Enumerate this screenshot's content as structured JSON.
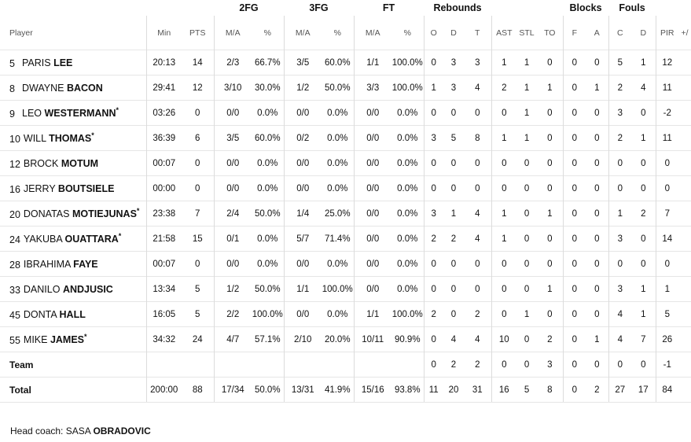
{
  "groups": {
    "two_fg": "2FG",
    "three_fg": "3FG",
    "ft": "FT",
    "rebounds": "Rebounds",
    "blocks": "Blocks",
    "fouls": "Fouls"
  },
  "headers": [
    "Player",
    "Min",
    "PTS",
    "M/A",
    "%",
    "M/A",
    "%",
    "M/A",
    "%",
    "O",
    "D",
    "T",
    "AST",
    "STL",
    "TO",
    "F",
    "A",
    "C",
    "D",
    "PIR",
    "+/"
  ],
  "players": [
    {
      "num": "5",
      "first": "PARIS",
      "last": "LEE",
      "star": "",
      "stats": [
        "20:13",
        "14",
        "2/3",
        "66.7%",
        "3/5",
        "60.0%",
        "1/1",
        "100.0%",
        "0",
        "3",
        "3",
        "1",
        "1",
        "0",
        "0",
        "0",
        "5",
        "1",
        "12",
        ""
      ]
    },
    {
      "num": "8",
      "first": "DWAYNE",
      "last": "BACON",
      "star": "",
      "stats": [
        "29:41",
        "12",
        "3/10",
        "30.0%",
        "1/2",
        "50.0%",
        "3/3",
        "100.0%",
        "1",
        "3",
        "4",
        "2",
        "1",
        "1",
        "0",
        "1",
        "2",
        "4",
        "11",
        ""
      ]
    },
    {
      "num": "9",
      "first": "LEO",
      "last": "WESTERMANN",
      "star": "*",
      "stats": [
        "03:26",
        "0",
        "0/0",
        "0.0%",
        "0/0",
        "0.0%",
        "0/0",
        "0.0%",
        "0",
        "0",
        "0",
        "0",
        "1",
        "0",
        "0",
        "0",
        "3",
        "0",
        "-2",
        ""
      ]
    },
    {
      "num": "10",
      "first": "WILL",
      "last": "THOMAS",
      "star": "*",
      "stats": [
        "36:39",
        "6",
        "3/5",
        "60.0%",
        "0/2",
        "0.0%",
        "0/0",
        "0.0%",
        "3",
        "5",
        "8",
        "1",
        "1",
        "0",
        "0",
        "0",
        "2",
        "1",
        "11",
        ""
      ]
    },
    {
      "num": "12",
      "first": "BROCK",
      "last": "MOTUM",
      "star": "",
      "stats": [
        "00:07",
        "0",
        "0/0",
        "0.0%",
        "0/0",
        "0.0%",
        "0/0",
        "0.0%",
        "0",
        "0",
        "0",
        "0",
        "0",
        "0",
        "0",
        "0",
        "0",
        "0",
        "0",
        ""
      ]
    },
    {
      "num": "16",
      "first": "JERRY",
      "last": "BOUTSIELE",
      "star": "",
      "stats": [
        "00:00",
        "0",
        "0/0",
        "0.0%",
        "0/0",
        "0.0%",
        "0/0",
        "0.0%",
        "0",
        "0",
        "0",
        "0",
        "0",
        "0",
        "0",
        "0",
        "0",
        "0",
        "0",
        ""
      ]
    },
    {
      "num": "20",
      "first": "DONATAS",
      "last": "MOTIEJUNAS",
      "star": "*",
      "stats": [
        "23:38",
        "7",
        "2/4",
        "50.0%",
        "1/4",
        "25.0%",
        "0/0",
        "0.0%",
        "3",
        "1",
        "4",
        "1",
        "0",
        "1",
        "0",
        "0",
        "1",
        "2",
        "7",
        ""
      ]
    },
    {
      "num": "24",
      "first": "YAKUBA",
      "last": "OUATTARA",
      "star": "*",
      "stats": [
        "21:58",
        "15",
        "0/1",
        "0.0%",
        "5/7",
        "71.4%",
        "0/0",
        "0.0%",
        "2",
        "2",
        "4",
        "1",
        "0",
        "0",
        "0",
        "0",
        "3",
        "0",
        "14",
        ""
      ]
    },
    {
      "num": "28",
      "first": "IBRAHIMA",
      "last": "FAYE",
      "star": "",
      "stats": [
        "00:07",
        "0",
        "0/0",
        "0.0%",
        "0/0",
        "0.0%",
        "0/0",
        "0.0%",
        "0",
        "0",
        "0",
        "0",
        "0",
        "0",
        "0",
        "0",
        "0",
        "0",
        "0",
        ""
      ]
    },
    {
      "num": "33",
      "first": "DANILO",
      "last": "ANDJUSIC",
      "star": "",
      "stats": [
        "13:34",
        "5",
        "1/2",
        "50.0%",
        "1/1",
        "100.0%",
        "0/0",
        "0.0%",
        "0",
        "0",
        "0",
        "0",
        "0",
        "1",
        "0",
        "0",
        "3",
        "1",
        "1",
        ""
      ]
    },
    {
      "num": "45",
      "first": "DONTA",
      "last": "HALL",
      "star": "",
      "stats": [
        "16:05",
        "5",
        "2/2",
        "100.0%",
        "0/0",
        "0.0%",
        "1/1",
        "100.0%",
        "2",
        "0",
        "2",
        "0",
        "1",
        "0",
        "0",
        "0",
        "4",
        "1",
        "5",
        ""
      ]
    },
    {
      "num": "55",
      "first": "MIKE",
      "last": "JAMES",
      "star": "*",
      "stats": [
        "34:32",
        "24",
        "4/7",
        "57.1%",
        "2/10",
        "20.0%",
        "10/11",
        "90.9%",
        "0",
        "4",
        "4",
        "10",
        "0",
        "2",
        "0",
        "1",
        "4",
        "7",
        "26",
        ""
      ]
    }
  ],
  "team_row": {
    "label": "Team",
    "stats": [
      "",
      "",
      "",
      "",
      "",
      "",
      "",
      "",
      "0",
      "2",
      "2",
      "0",
      "0",
      "3",
      "0",
      "0",
      "0",
      "0",
      "-1",
      ""
    ]
  },
  "total_row": {
    "label": "Total",
    "stats": [
      "200:00",
      "88",
      "17/34",
      "50.0%",
      "13/31",
      "41.9%",
      "15/16",
      "93.8%",
      "11",
      "20",
      "31",
      "16",
      "5",
      "8",
      "0",
      "2",
      "27",
      "17",
      "84",
      ""
    ]
  },
  "coach": {
    "label": "Head coach:",
    "first": "SASA",
    "last": "OBRADOVIC"
  }
}
